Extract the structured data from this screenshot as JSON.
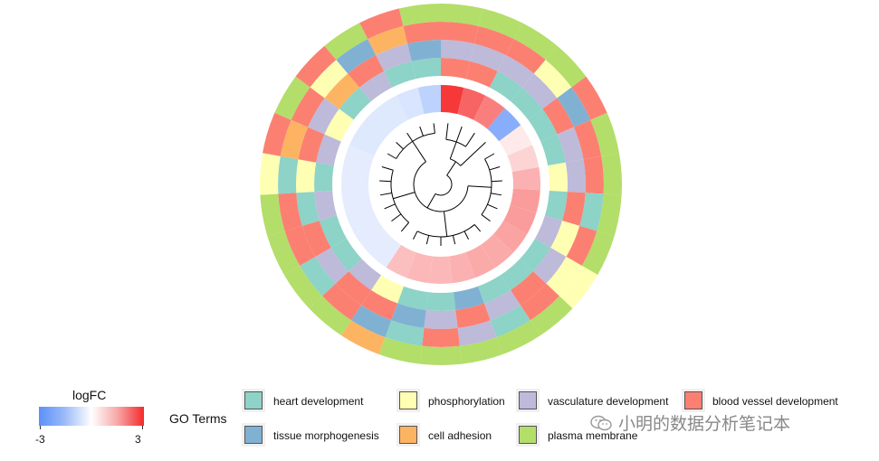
{
  "chart_data": {
    "type": "circular_heatmap",
    "logfc_values": [
      2.8,
      2.2,
      1.8,
      -2.2,
      0.3,
      0.6,
      1.1,
      1.4,
      1.4,
      1.3,
      1.2,
      1.2,
      1.1,
      1.0,
      1.0,
      0.9,
      -0.5,
      -0.5,
      -0.5,
      -0.5,
      -0.5,
      -0.5,
      -0.6,
      -0.6,
      -0.6,
      -0.7,
      -1.2
    ],
    "go_terms_per_gene": [
      [
        "blood vessel development",
        "vasculature development",
        "blood vessel development",
        "plasma membrane"
      ],
      [
        "blood vessel development",
        "vasculature development",
        "blood vessel development",
        "plasma membrane"
      ],
      [
        "heart development",
        "vasculature development",
        "blood vessel development",
        "plasma membrane"
      ],
      [
        "heart development",
        "vasculature development",
        "phosphorylation",
        "plasma membrane"
      ],
      [
        "heart development",
        "blood vessel development",
        "tissue morphogenesis",
        "blood vessel development"
      ],
      [
        "heart development",
        "vasculature development",
        "blood vessel development",
        "plasma membrane"
      ],
      [
        "phosphorylation",
        "vasculature development",
        "blood vessel development",
        "plasma membrane"
      ],
      [
        "heart development",
        "blood vessel development",
        "heart development",
        "plasma membrane"
      ],
      [
        "vasculature development",
        "phosphorylation",
        "blood vessel development",
        "plasma membrane"
      ],
      [
        "heart development",
        "vasculature development",
        "phosphorylation",
        "phosphorylation"
      ],
      [
        "heart development",
        "blood vessel development",
        "blood vessel development",
        "plasma membrane"
      ],
      [
        "heart development",
        "vasculature development",
        "heart development",
        "plasma membrane"
      ],
      [
        "tissue morphogenesis",
        "blood vessel development",
        "vasculature development",
        "plasma membrane"
      ],
      [
        "heart development",
        "vasculature development",
        "blood vessel development",
        "plasma membrane"
      ],
      [
        "heart development",
        "tissue morphogenesis",
        "heart development",
        "plasma membrane"
      ],
      [
        "phosphorylation",
        "blood vessel development",
        "tissue morphogenesis",
        "cell adhesion"
      ],
      [
        "vasculature development",
        "blood vessel development",
        "blood vessel development",
        "plasma membrane"
      ],
      [
        "heart development",
        "vasculature development",
        "heart development",
        "plasma membrane"
      ],
      [
        "heart development",
        "blood vessel development",
        "blood vessel development",
        "plasma membrane"
      ],
      [
        "vasculature development",
        "heart development",
        "blood vessel development",
        "plasma membrane"
      ],
      [
        "heart development",
        "phosphorylation",
        "heart development",
        "phosphorylation"
      ],
      [
        "vasculature development",
        "blood vessel development",
        "cell adhesion",
        "blood vessel development"
      ],
      [
        "phosphorylation",
        "vasculature development",
        "blood vessel development",
        "plasma membrane"
      ],
      [
        "heart development",
        "cell adhesion",
        "phosphorylation",
        "blood vessel development"
      ],
      [
        "vasculature development",
        "blood vessel development",
        "tissue morphogenesis",
        "plasma membrane"
      ],
      [
        "heart development",
        "vasculature development",
        "cell adhesion",
        "blood vessel development"
      ],
      [
        "heart development",
        "tissue morphogenesis",
        "blood vessel development",
        "plasma membrane"
      ]
    ],
    "logfc_legend": {
      "title": "logFC",
      "min_label": "-3",
      "max_label": "3",
      "range": [
        -3,
        3
      ]
    },
    "go_legend": {
      "title": "GO Terms",
      "entries": [
        {
          "name": "heart development",
          "color": "#8dd3c7"
        },
        {
          "name": "phosphorylation",
          "color": "#ffffb3"
        },
        {
          "name": "vasculature development",
          "color": "#bebada"
        },
        {
          "name": "blood vessel development",
          "color": "#fb8072"
        },
        {
          "name": "tissue morphogenesis",
          "color": "#80b1d3"
        },
        {
          "name": "cell adhesion",
          "color": "#fdb462"
        },
        {
          "name": "plasma membrane",
          "color": "#b3de69"
        }
      ]
    },
    "colors": {
      "low": "#5b8ff9",
      "mid": "#ffffff",
      "high": "#f52a2a"
    }
  },
  "watermark": {
    "text": "小明的数据分析笔记本",
    "icon": "wechat-icon"
  }
}
